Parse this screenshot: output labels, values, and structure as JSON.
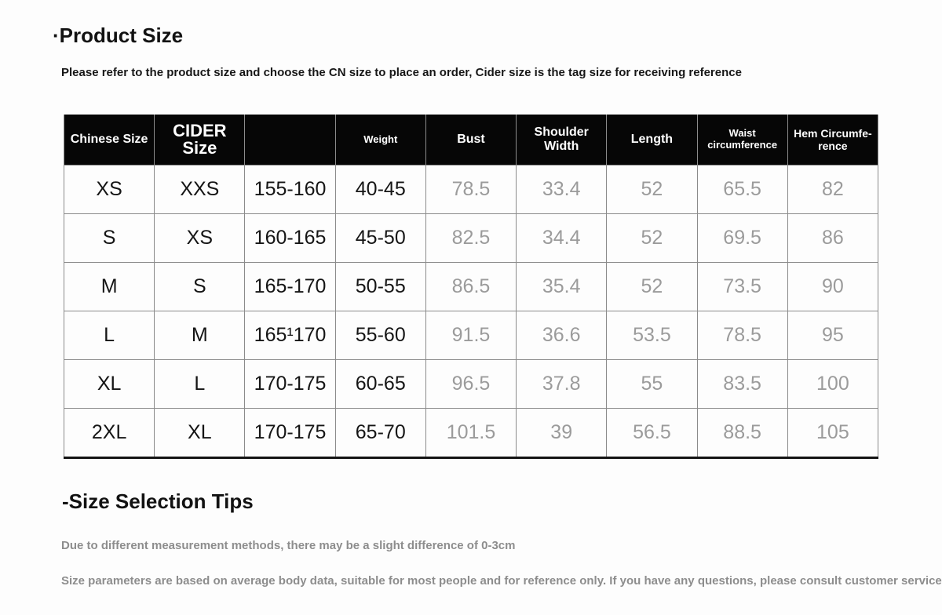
{
  "page": {
    "title": "·Product Size",
    "subtitle": "Please refer to the product size and choose the CN size to place an order, Cider size is the tag size for receiving reference",
    "tips_title": "-Size Selection Tips",
    "tips": [
      "Due to different measurement methods, there may be a slight difference of 0-3cm",
      "Size parameters are based on average body data, suitable for most people and for reference only. If you have any questions, please consult customer service"
    ]
  },
  "table": {
    "headers": [
      "Chinese Size",
      "CIDER Size",
      "",
      "Weight",
      "Bust",
      "Shoulder Width",
      "Length",
      "Waist circumference",
      "Hem Circumfe-rence"
    ],
    "rows": [
      [
        "XS",
        "XXS",
        "155-160",
        "40-45",
        "78.5",
        "33.4",
        "52",
        "65.5",
        "82"
      ],
      [
        "S",
        "XS",
        "160-165",
        "45-50",
        "82.5",
        "34.4",
        "52",
        "69.5",
        "86"
      ],
      [
        "M",
        "S",
        "165-170",
        "50-55",
        "86.5",
        "35.4",
        "52",
        "73.5",
        "90"
      ],
      [
        "L",
        "M",
        "165¹170",
        "55-60",
        "91.5",
        "36.6",
        "53.5",
        "78.5",
        "95"
      ],
      [
        "XL",
        "L",
        "170-175",
        "60-65",
        "96.5",
        "37.8",
        "55",
        "83.5",
        "100"
      ],
      [
        "2XL",
        "XL",
        "170-175",
        "65-70",
        "101.5",
        "39",
        "56.5",
        "88.5",
        "105"
      ]
    ]
  },
  "colors": {
    "header_background": "#060606",
    "header_text": "#ffffff",
    "size_text": "#151515",
    "measurement_text": "#9b9b9b",
    "tips_text": "#8d8d8d",
    "grid_border": "#8b8b8b",
    "page_background": "#fdfdfd"
  }
}
